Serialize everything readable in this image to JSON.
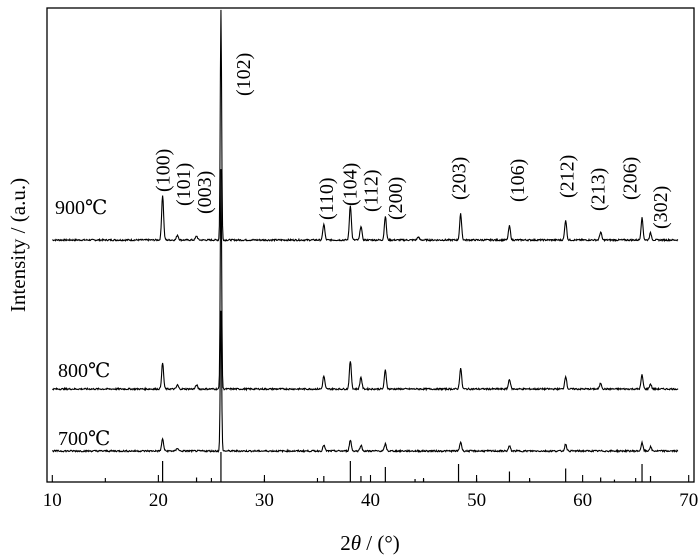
{
  "chart_data": {
    "type": "line",
    "xlabel_parts": [
      "2",
      "θ",
      " / (°)"
    ],
    "ylabel": "Intensity / (a.u.)",
    "xlim": [
      9.5,
      70.5
    ],
    "x_ticks": [
      10,
      20,
      30,
      40,
      50,
      60,
      70
    ],
    "x_tick_labels": [
      "10",
      "20",
      "30",
      "40",
      "50",
      "60",
      "70"
    ],
    "grid": false,
    "line_color": "#000000",
    "series": [
      {
        "name": "900℃",
        "peaks": [
          {
            "x": 20.4,
            "h": 45
          },
          {
            "x": 21.8,
            "h": 5
          },
          {
            "x": 23.6,
            "h": 4
          },
          {
            "x": 25.9,
            "h": 230
          },
          {
            "x": 35.6,
            "h": 16
          },
          {
            "x": 38.1,
            "h": 35
          },
          {
            "x": 39.1,
            "h": 14
          },
          {
            "x": 41.4,
            "h": 24
          },
          {
            "x": 44.5,
            "h": 3
          },
          {
            "x": 48.5,
            "h": 26
          },
          {
            "x": 53.1,
            "h": 14
          },
          {
            "x": 58.4,
            "h": 20
          },
          {
            "x": 61.7,
            "h": 8
          },
          {
            "x": 65.6,
            "h": 22
          },
          {
            "x": 66.4,
            "h": 7
          }
        ]
      },
      {
        "name": "800℃",
        "peaks": [
          {
            "x": 20.4,
            "h": 26
          },
          {
            "x": 21.8,
            "h": 4
          },
          {
            "x": 23.6,
            "h": 4
          },
          {
            "x": 25.9,
            "h": 220
          },
          {
            "x": 35.6,
            "h": 13
          },
          {
            "x": 38.1,
            "h": 28
          },
          {
            "x": 39.1,
            "h": 12
          },
          {
            "x": 41.4,
            "h": 19
          },
          {
            "x": 48.5,
            "h": 21
          },
          {
            "x": 53.1,
            "h": 10
          },
          {
            "x": 58.4,
            "h": 13
          },
          {
            "x": 61.7,
            "h": 6
          },
          {
            "x": 65.6,
            "h": 14
          },
          {
            "x": 66.4,
            "h": 5
          }
        ]
      },
      {
        "name": "700℃",
        "peaks": [
          {
            "x": 20.4,
            "h": 12
          },
          {
            "x": 21.8,
            "h": 3
          },
          {
            "x": 25.9,
            "h": 140
          },
          {
            "x": 35.6,
            "h": 6
          },
          {
            "x": 38.1,
            "h": 11
          },
          {
            "x": 39.1,
            "h": 6
          },
          {
            "x": 41.4,
            "h": 7
          },
          {
            "x": 48.5,
            "h": 9
          },
          {
            "x": 53.1,
            "h": 5
          },
          {
            "x": 58.4,
            "h": 7
          },
          {
            "x": 65.6,
            "h": 8
          },
          {
            "x": 66.4,
            "h": 4
          }
        ]
      }
    ],
    "reference_lines": [
      {
        "x": 20.4,
        "h": 0.7
      },
      {
        "x": 23.6,
        "h": 0.15
      },
      {
        "x": 25.9,
        "h": 1.0
      },
      {
        "x": 30.0,
        "h": 0.1
      },
      {
        "x": 35.6,
        "h": 0.2
      },
      {
        "x": 38.1,
        "h": 0.7
      },
      {
        "x": 39.1,
        "h": 0.2
      },
      {
        "x": 41.4,
        "h": 0.5
      },
      {
        "x": 44.2,
        "h": 0.1
      },
      {
        "x": 45.0,
        "h": 0.1
      },
      {
        "x": 48.3,
        "h": 0.6
      },
      {
        "x": 50.0,
        "h": 0.12
      },
      {
        "x": 53.1,
        "h": 0.35
      },
      {
        "x": 55.0,
        "h": 0.08
      },
      {
        "x": 58.4,
        "h": 0.45
      },
      {
        "x": 61.7,
        "h": 0.15
      },
      {
        "x": 63.0,
        "h": 0.08
      },
      {
        "x": 65.6,
        "h": 0.6
      },
      {
        "x": 66.4,
        "h": 0.2
      }
    ],
    "annotations": [
      {
        "text": "(100)",
        "x": 20.4
      },
      {
        "text": "(101)",
        "x": 22.3
      },
      {
        "text": "(003)",
        "x": 24.3
      },
      {
        "text": "(102)",
        "x": 28.0
      },
      {
        "text": "(110)",
        "x": 35.8
      },
      {
        "text": "(104)",
        "x": 38.0
      },
      {
        "text": "(112)",
        "x": 40.0
      },
      {
        "text": "(200)",
        "x": 42.3
      },
      {
        "text": "(203)",
        "x": 48.3
      },
      {
        "text": "(106)",
        "x": 53.8
      },
      {
        "text": "(212)",
        "x": 58.5
      },
      {
        "text": "(213)",
        "x": 61.4
      },
      {
        "text": "(206)",
        "x": 64.4
      },
      {
        "text": "(302)",
        "x": 67.3
      }
    ]
  }
}
